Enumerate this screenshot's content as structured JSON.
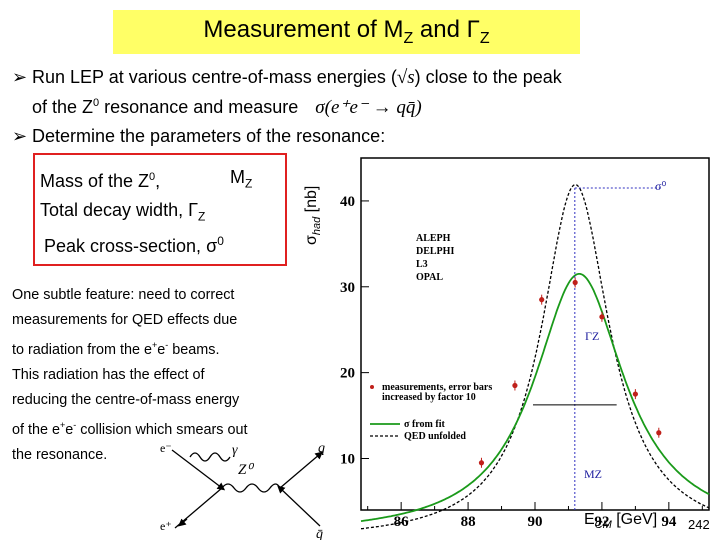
{
  "title": {
    "text": "Measurement of M",
    "sub1": "Z",
    "mid": " and Γ",
    "sub2": "Z"
  },
  "bullets": [
    {
      "line1_a": "Run LEP at various centre-of-mass energies (",
      "line1_b": ") close to the peak",
      "line2": "of the Z",
      "line2_sup": "0",
      "line2_b": " resonance and measure"
    },
    {
      "line1": "Determine the parameters of the resonance:"
    }
  ],
  "formula_sqrt": "√s",
  "formula_sigma": "σ(e⁺e⁻ → qq̄)",
  "params": [
    {
      "label": "Mass of the Z",
      "sup": "0",
      "comma": ",",
      "sym": "M",
      "sub": "Z"
    },
    {
      "label": "Total decay width,",
      "sym": "Γ",
      "sub": "Z"
    },
    {
      "label": "Peak cross-section,",
      "sym": "σ",
      "sub": "0"
    }
  ],
  "note": {
    "l1": "One subtle feature: need to correct",
    "l2": "measurements for QED effects due",
    "l3a": "to radiation from the e",
    "l3sup1": "+",
    "l3b": "e",
    "l3sup2": "-",
    "l3c": " beams.",
    "l4": "This radiation has the effect of",
    "l5": "reducing the centre-of-mass energy",
    "l6a": "of the e",
    "l6sup1": "+",
    "l6b": "e",
    "l6sup2": "-",
    "l6c": " collision which smears out",
    "l7": "the resonance."
  },
  "feynman": {
    "e_minus": "e⁻",
    "e_plus": "e⁺",
    "gamma": "γ",
    "z0": "Z⁰",
    "q": "q",
    "qbar": "q̄"
  },
  "chart_data": {
    "type": "line",
    "xlabel": "E",
    "xlabel_sub": "CM",
    "xlabel_unit": " [GeV]",
    "ylabel": "σ",
    "ylabel_sub": "had",
    "ylabel_unit": " [nb]",
    "xlim": [
      84.8,
      95.2
    ],
    "ylim": [
      4,
      45
    ],
    "xticks": [
      86,
      88,
      90,
      92,
      94
    ],
    "yticks": [
      10,
      20,
      30,
      40
    ],
    "experiments": [
      "ALEPH",
      "DELPHI",
      "L3",
      "OPAL"
    ],
    "legend_points": "measurements, error bars",
    "legend_points2": "increased by factor 10",
    "legend_fit": "σ from fit",
    "legend_unfolded": "QED unfolded",
    "annotations": {
      "sigma0": "σ⁰",
      "gammaZ": "ΓZ",
      "mZ": "MZ"
    },
    "points": [
      {
        "x": 88.4,
        "y": 9.5
      },
      {
        "x": 89.4,
        "y": 18.5
      },
      {
        "x": 90.2,
        "y": 28.5
      },
      {
        "x": 91.2,
        "y": 30.5
      },
      {
        "x": 92.0,
        "y": 26.5
      },
      {
        "x": 93.0,
        "y": 17.5
      },
      {
        "x": 93.7,
        "y": 13.0
      }
    ],
    "mz": 91.19,
    "sigma0": 41.5,
    "gamma_z": 2.5,
    "fit_peak": 30.5,
    "colors": {
      "fit": "#1a9a1a",
      "unfolded": "#000000",
      "points": "#c0201a"
    }
  },
  "page_number": "242"
}
